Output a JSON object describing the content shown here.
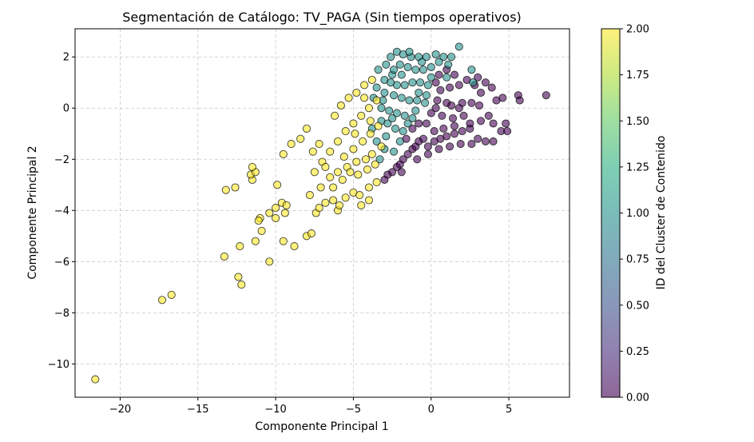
{
  "chart_data": {
    "type": "scatter",
    "title": "Segmentación de Catálogo: TV_PAGA (Sin tiempos operativos)",
    "xlabel": "Componente Principal 1",
    "ylabel": "Componente Principal 2",
    "xlim": [
      -22.9,
      8.9
    ],
    "ylim": [
      -11.3,
      3.1
    ],
    "xticks": [
      -20,
      -15,
      -10,
      -5,
      0,
      5
    ],
    "yticks": [
      -10,
      -8,
      -6,
      -4,
      -2,
      0,
      2
    ],
    "xtick_labels": [
      "−20",
      "−15",
      "−10",
      "−5",
      "0",
      "5"
    ],
    "ytick_labels": [
      "−10",
      "−8",
      "−6",
      "−4",
      "−2",
      "0",
      "2"
    ],
    "grid": true,
    "colormap": "viridis",
    "cluster_colors": [
      "#440154",
      "#21918c",
      "#fde725"
    ],
    "marker_edge_color": "#000000",
    "marker_alpha": 0.6,
    "colorbar": {
      "label": "ID del Cluster de Contenido",
      "range": [
        0,
        2
      ],
      "ticks": [
        0,
        0.25,
        0.5,
        0.75,
        1,
        1.25,
        1.5,
        1.75,
        2
      ],
      "tick_labels": [
        "0.00",
        "0.25",
        "0.50",
        "0.75",
        "1.00",
        "1.25",
        "1.50",
        "1.75",
        "2.00"
      ]
    },
    "series": [
      {
        "cluster": 0,
        "points": [
          [
            -3.0,
            -2.8
          ],
          [
            -2.8,
            -2.6
          ],
          [
            -2.5,
            -2.5
          ],
          [
            -2.2,
            -2.3
          ],
          [
            -2.0,
            -2.2
          ],
          [
            -1.8,
            -2.0
          ],
          [
            -1.5,
            -1.8
          ],
          [
            -1.2,
            -1.6
          ],
          [
            -1.0,
            -1.5
          ],
          [
            -0.8,
            -1.3
          ],
          [
            -0.5,
            -1.2
          ],
          [
            0.2,
            -1.3
          ],
          [
            0.6,
            -1.2
          ],
          [
            1.0,
            -1.1
          ],
          [
            1.5,
            -1.0
          ],
          [
            2.0,
            -0.9
          ],
          [
            2.5,
            -0.8
          ],
          [
            3.0,
            -1.2
          ],
          [
            3.5,
            -1.3
          ],
          [
            4.0,
            -1.3
          ],
          [
            4.5,
            -0.9
          ],
          [
            4.8,
            -0.6
          ],
          [
            4.0,
            -0.6
          ],
          [
            3.2,
            -0.5
          ],
          [
            2.5,
            -0.6
          ],
          [
            1.5,
            -0.7
          ],
          [
            0.8,
            -0.8
          ],
          [
            0.2,
            -0.9
          ],
          [
            -0.3,
            -0.6
          ],
          [
            -0.8,
            -0.6
          ],
          [
            -1.2,
            -0.8
          ],
          [
            -1.6,
            -1.2
          ],
          [
            0.3,
            0.0
          ],
          [
            1.0,
            0.2
          ],
          [
            2.0,
            0.2
          ],
          [
            2.6,
            0.2
          ],
          [
            3.1,
            0.1
          ],
          [
            0.4,
            0.3
          ],
          [
            1.3,
            0.1
          ],
          [
            1.8,
            0.0
          ],
          [
            0.6,
            0.7
          ],
          [
            1.2,
            0.8
          ],
          [
            1.8,
            0.9
          ],
          [
            2.3,
            1.1
          ],
          [
            3.0,
            1.2
          ],
          [
            3.5,
            1.0
          ],
          [
            3.9,
            0.8
          ],
          [
            3.2,
            0.6
          ],
          [
            4.2,
            0.3
          ],
          [
            4.6,
            0.4
          ],
          [
            5.6,
            0.5
          ],
          [
            5.7,
            0.3
          ],
          [
            7.4,
            0.5
          ],
          [
            2.8,
            0.9
          ],
          [
            0.5,
            1.3
          ],
          [
            1.0,
            1.5
          ],
          [
            1.5,
            1.3
          ],
          [
            0.3,
            1.0
          ],
          [
            0.7,
            -0.3
          ],
          [
            1.4,
            -0.4
          ],
          [
            2.1,
            -0.3
          ],
          [
            -0.2,
            -1.8
          ],
          [
            0.5,
            -1.6
          ],
          [
            1.2,
            -1.5
          ],
          [
            1.9,
            -1.4
          ],
          [
            2.6,
            -1.4
          ],
          [
            -1.9,
            -2.5
          ],
          [
            -0.9,
            -2.0
          ],
          [
            -0.2,
            -1.5
          ],
          [
            0.0,
            -0.2
          ],
          [
            4.9,
            -0.9
          ],
          [
            3.7,
            -0.3
          ]
        ]
      },
      {
        "cluster": 1,
        "points": [
          [
            -2.2,
            2.2
          ],
          [
            -1.8,
            2.1
          ],
          [
            -1.3,
            2.0
          ],
          [
            -0.8,
            2.0
          ],
          [
            -0.3,
            2.0
          ],
          [
            0.3,
            2.1
          ],
          [
            0.8,
            2.0
          ],
          [
            1.3,
            2.0
          ],
          [
            1.8,
            2.4
          ],
          [
            -2.0,
            1.7
          ],
          [
            -1.5,
            1.6
          ],
          [
            -1.0,
            1.5
          ],
          [
            -0.5,
            1.5
          ],
          [
            0.0,
            1.6
          ],
          [
            -3.0,
            1.1
          ],
          [
            -2.5,
            1.3
          ],
          [
            -2.2,
            0.9
          ],
          [
            -1.7,
            0.9
          ],
          [
            -1.2,
            1.0
          ],
          [
            -0.7,
            1.0
          ],
          [
            -0.2,
            0.9
          ],
          [
            -3.0,
            0.6
          ],
          [
            -2.4,
            0.5
          ],
          [
            -1.9,
            0.4
          ],
          [
            -1.4,
            0.3
          ],
          [
            -0.9,
            0.3
          ],
          [
            -0.4,
            0.2
          ],
          [
            -3.2,
            0.0
          ],
          [
            -2.7,
            -0.1
          ],
          [
            -2.2,
            -0.2
          ],
          [
            -1.7,
            -0.3
          ],
          [
            -1.2,
            -0.4
          ],
          [
            -3.2,
            -0.5
          ],
          [
            -2.8,
            -0.6
          ],
          [
            -2.3,
            -0.8
          ],
          [
            -1.8,
            -0.9
          ],
          [
            -3.5,
            -1.3
          ],
          [
            -2.9,
            -1.1
          ],
          [
            -3.0,
            -1.6
          ],
          [
            -2.4,
            -1.7
          ],
          [
            -3.3,
            -2.0
          ],
          [
            -2.6,
            2.0
          ],
          [
            -3.4,
            1.5
          ],
          [
            -3.7,
            0.4
          ],
          [
            -3.5,
            0.8
          ],
          [
            -2.9,
            1.7
          ],
          [
            -1.4,
            2.2
          ],
          [
            -0.6,
            1.8
          ],
          [
            0.5,
            1.8
          ],
          [
            1.1,
            1.7
          ],
          [
            2.6,
            1.5
          ],
          [
            2.7,
            1.0
          ],
          [
            1.0,
            1.2
          ],
          [
            -3.1,
            0.3
          ],
          [
            -2.5,
            -0.4
          ],
          [
            -2.0,
            -1.3
          ],
          [
            -1.5,
            -0.6
          ],
          [
            -1.0,
            -0.1
          ],
          [
            -2.6,
            1.0
          ],
          [
            -3.8,
            -0.8
          ],
          [
            -0.8,
            0.6
          ],
          [
            -0.3,
            0.5
          ],
          [
            0.0,
            1.2
          ],
          [
            -1.9,
            1.3
          ],
          [
            -2.4,
            1.5
          ]
        ]
      },
      {
        "cluster": 2,
        "points": [
          [
            -21.6,
            -10.6
          ],
          [
            -17.3,
            -7.5
          ],
          [
            -16.7,
            -7.3
          ],
          [
            -12.4,
            -6.6
          ],
          [
            -12.2,
            -6.9
          ],
          [
            -13.3,
            -5.8
          ],
          [
            -12.3,
            -5.4
          ],
          [
            -10.4,
            -6.0
          ],
          [
            -11.3,
            -5.2
          ],
          [
            -10.9,
            -4.8
          ],
          [
            -11.0,
            -4.3
          ],
          [
            -11.1,
            -4.4
          ],
          [
            -10.4,
            -4.1
          ],
          [
            -10.0,
            -4.3
          ],
          [
            -10.0,
            -3.9
          ],
          [
            -9.6,
            -3.7
          ],
          [
            -9.4,
            -4.1
          ],
          [
            -9.3,
            -3.8
          ],
          [
            -13.2,
            -3.2
          ],
          [
            -12.6,
            -3.1
          ],
          [
            -11.5,
            -2.8
          ],
          [
            -11.6,
            -2.6
          ],
          [
            -11.3,
            -2.5
          ],
          [
            -11.5,
            -2.3
          ],
          [
            -9.9,
            -3.0
          ],
          [
            -9.5,
            -5.2
          ],
          [
            -8.8,
            -5.4
          ],
          [
            -8.0,
            -5.0
          ],
          [
            -7.7,
            -4.9
          ],
          [
            -7.4,
            -4.1
          ],
          [
            -7.2,
            -3.9
          ],
          [
            -6.8,
            -3.7
          ],
          [
            -6.3,
            -3.6
          ],
          [
            -6.0,
            -4.0
          ],
          [
            -5.5,
            -3.5
          ],
          [
            -5.0,
            -3.3
          ],
          [
            -4.6,
            -3.4
          ],
          [
            -4.5,
            -3.8
          ],
          [
            -4.0,
            -3.1
          ],
          [
            -7.8,
            -3.4
          ],
          [
            -7.1,
            -3.1
          ],
          [
            -6.5,
            -2.7
          ],
          [
            -6.0,
            -2.5
          ],
          [
            -5.4,
            -2.3
          ],
          [
            -4.8,
            -2.1
          ],
          [
            -4.2,
            -2.0
          ],
          [
            -3.8,
            -1.8
          ],
          [
            -7.5,
            -2.5
          ],
          [
            -7.0,
            -2.1
          ],
          [
            -6.5,
            -1.7
          ],
          [
            -6.0,
            -1.3
          ],
          [
            -5.5,
            -0.9
          ],
          [
            -5.0,
            -0.6
          ],
          [
            -4.5,
            -0.3
          ],
          [
            -4.0,
            0.0
          ],
          [
            -3.5,
            0.3
          ],
          [
            -8.4,
            -1.2
          ],
          [
            -8.0,
            -0.8
          ],
          [
            -7.6,
            -1.7
          ],
          [
            -7.2,
            -1.4
          ],
          [
            -9.5,
            -1.8
          ],
          [
            -9.0,
            -1.4
          ],
          [
            -6.2,
            -0.3
          ],
          [
            -5.8,
            0.1
          ],
          [
            -5.3,
            0.4
          ],
          [
            -4.8,
            0.6
          ],
          [
            -4.3,
            0.9
          ],
          [
            -3.8,
            1.1
          ],
          [
            -5.0,
            -1.6
          ],
          [
            -4.4,
            -1.3
          ],
          [
            -3.9,
            -1.0
          ],
          [
            -3.4,
            -0.7
          ],
          [
            -5.7,
            -2.8
          ],
          [
            -5.2,
            -2.5
          ],
          [
            -4.7,
            -2.6
          ],
          [
            -4.1,
            -2.4
          ],
          [
            -3.6,
            -2.2
          ],
          [
            -4.9,
            -1.0
          ],
          [
            -4.3,
            0.4
          ],
          [
            -3.9,
            -0.5
          ],
          [
            -5.6,
            -1.9
          ],
          [
            -6.8,
            -2.3
          ],
          [
            -3.5,
            -2.9
          ],
          [
            -4.0,
            -3.6
          ],
          [
            -6.3,
            -3.1
          ],
          [
            -5.9,
            -3.8
          ],
          [
            -3.2,
            -1.5
          ]
        ]
      }
    ]
  }
}
